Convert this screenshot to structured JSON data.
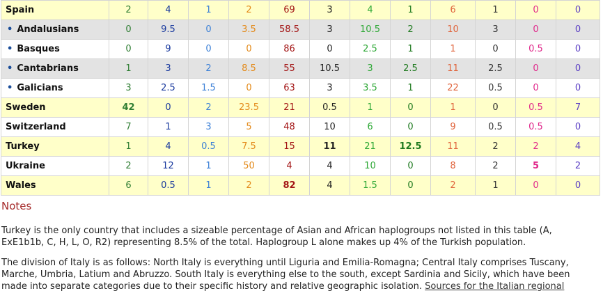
{
  "colors": [
    "#2e7d32",
    "#1a3a9e",
    "#3a7fd6",
    "#e38a1a",
    "#a31515",
    "#222222",
    "#2ea836",
    "#1f7a1f",
    "#e0643c",
    "#333333",
    "#e0288a",
    "#5a3ec4"
  ],
  "rows": [
    {
      "name": "Spain",
      "bullet": false,
      "style": "yellow",
      "values": [
        "2",
        "4",
        "1",
        "2",
        "69",
        "3",
        "4",
        "1",
        "6",
        "1",
        "0",
        "0"
      ],
      "bold": []
    },
    {
      "name": "Andalusians",
      "bullet": true,
      "style": "grey",
      "values": [
        "0",
        "9.5",
        "0",
        "3.5",
        "58.5",
        "3",
        "10.5",
        "2",
        "10",
        "3",
        "0",
        "0"
      ],
      "bold": []
    },
    {
      "name": "Basques",
      "bullet": true,
      "style": "light",
      "values": [
        "0",
        "9",
        "0",
        "0",
        "86",
        "0",
        "2.5",
        "1",
        "1",
        "0",
        "0.5",
        "0"
      ],
      "bold": []
    },
    {
      "name": "Cantabrians",
      "bullet": true,
      "style": "grey",
      "values": [
        "1",
        "3",
        "2",
        "8.5",
        "55",
        "10.5",
        "3",
        "2.5",
        "11",
        "2.5",
        "0",
        "0"
      ],
      "bold": []
    },
    {
      "name": "Galicians",
      "bullet": true,
      "style": "light",
      "values": [
        "3",
        "2.5",
        "1.5",
        "0",
        "63",
        "3",
        "3.5",
        "1",
        "22",
        "0.5",
        "0",
        "0"
      ],
      "bold": []
    },
    {
      "name": "Sweden",
      "bullet": false,
      "style": "yellow",
      "values": [
        "42",
        "0",
        "2",
        "23.5",
        "21",
        "0.5",
        "1",
        "0",
        "1",
        "0",
        "0.5",
        "7"
      ],
      "bold": [
        0
      ]
    },
    {
      "name": "Switzerland",
      "bullet": false,
      "style": "light",
      "values": [
        "7",
        "1",
        "3",
        "5",
        "48",
        "10",
        "6",
        "0",
        "9",
        "0.5",
        "0.5",
        "0"
      ],
      "bold": []
    },
    {
      "name": "Turkey",
      "bullet": false,
      "style": "yellow",
      "values": [
        "1",
        "4",
        "0.5",
        "7.5",
        "15",
        "11",
        "21",
        "12.5",
        "11",
        "2",
        "2",
        "4"
      ],
      "bold": [
        5,
        7
      ]
    },
    {
      "name": "Ukraine",
      "bullet": false,
      "style": "light",
      "values": [
        "2",
        "12",
        "1",
        "50",
        "4",
        "4",
        "10",
        "0",
        "8",
        "2",
        "5",
        "2"
      ],
      "bold": [
        10
      ]
    },
    {
      "name": "Wales",
      "bullet": false,
      "style": "yellow",
      "values": [
        "6",
        "0.5",
        "1",
        "2",
        "82",
        "4",
        "1.5",
        "0",
        "2",
        "1",
        "0",
        "0"
      ],
      "bold": [
        4
      ]
    }
  ],
  "notes": {
    "heading": "Notes",
    "paragraph1": "Turkey is the only country that includes a sizeable percentage of Asian and African haplogroups not listed in this table (A, ExE1b1b, C, H, L, O, R2) representing 8.5% of the total. Haplogroup L alone makes up 4% of the Turkish population.",
    "paragraph2": "The division of Italy is as follows: North Italy is everything until Liguria and Emilia-Romagna; Central Italy comprises Tuscany, Marche, Umbria, Latium and Abruzzo. South Italy is everything else to the south, except Sardinia and Sicily, which have been made into separate categories due to their specific history and relative geographic isolation.",
    "link_text": "Sources for the Italian regional"
  }
}
